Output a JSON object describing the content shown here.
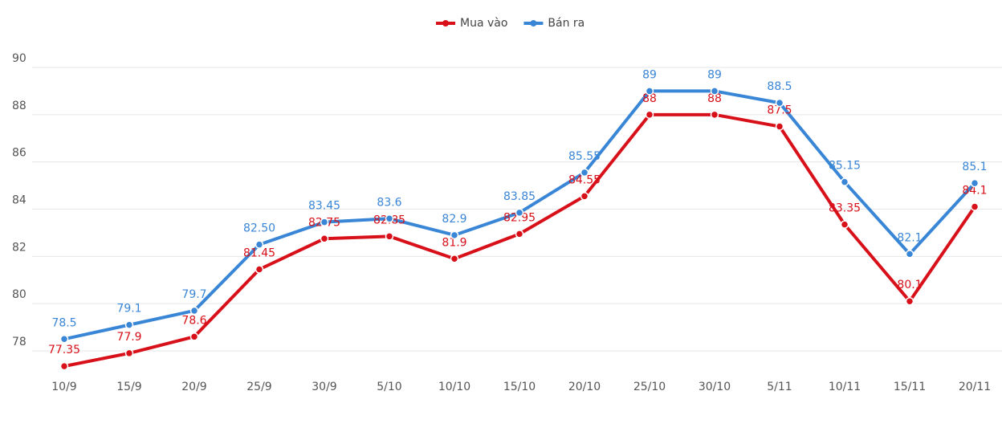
{
  "chart_data": {
    "type": "line",
    "categories": [
      "10/9",
      "15/9",
      "20/9",
      "25/9",
      "30/9",
      "5/10",
      "10/10",
      "15/10",
      "20/10",
      "25/10",
      "30/10",
      "5/11",
      "10/11",
      "15/11",
      "20/11"
    ],
    "series": [
      {
        "name": "Mua vào",
        "color": "#d7101a",
        "values": [
          77.35,
          77.9,
          78.6,
          81.45,
          82.75,
          82.85,
          81.9,
          82.95,
          84.55,
          88,
          88,
          87.5,
          83.35,
          80.1,
          84.1
        ]
      },
      {
        "name": "Bán ra",
        "color": "#3a86d6",
        "values": [
          78.5,
          79.1,
          79.7,
          82.5,
          83.45,
          83.6,
          82.9,
          83.85,
          85.55,
          89,
          89,
          88.5,
          85.15,
          82.1,
          85.1
        ],
        "value_labels": [
          "78.5",
          "79.1",
          "79.7",
          "82.50",
          "83.45",
          "83.6",
          "82.9",
          "83.85",
          "85.55",
          "89",
          "89",
          "88.5",
          "85.15",
          "82.1",
          "85.1"
        ]
      }
    ],
    "ylim": [
      77,
      90
    ],
    "yticks": [
      78,
      80,
      82,
      84,
      86,
      88,
      90
    ],
    "grid": true,
    "legend": "top"
  }
}
